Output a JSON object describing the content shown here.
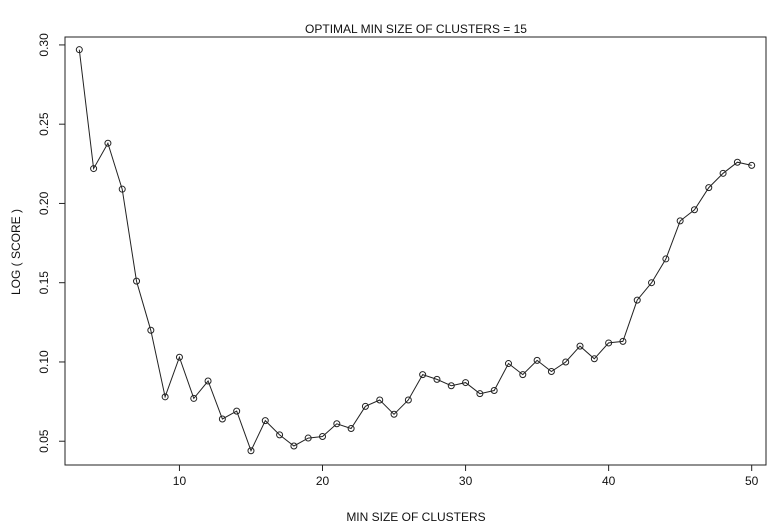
{
  "chart_data": {
    "type": "line",
    "title": "OPTIMAL MIN SIZE OF CLUSTERS = 15",
    "xlabel": "MIN SIZE OF CLUSTERS",
    "ylabel": "LOG ( SCORE )",
    "xlim": [
      2,
      51
    ],
    "ylim": [
      0.035,
      0.305
    ],
    "xticks": [
      10,
      20,
      30,
      40,
      50
    ],
    "yticks": [
      0.05,
      0.1,
      0.15,
      0.2,
      0.25,
      0.3
    ],
    "ytick_labels": [
      "0.05",
      "0.10",
      "0.15",
      "0.20",
      "0.25",
      "0.30"
    ],
    "grid": false,
    "markers": "open-circle",
    "series": [
      {
        "x": [
          3,
          4,
          5,
          6,
          7,
          8,
          9,
          10,
          11,
          12,
          13,
          14,
          15,
          16,
          17,
          18,
          19,
          20,
          21,
          22,
          23,
          24,
          25,
          26,
          27,
          28,
          29,
          30,
          31,
          32,
          33,
          34,
          35,
          36,
          37,
          38,
          39,
          40,
          41,
          42,
          43,
          44,
          45,
          46,
          47,
          48,
          49,
          50
        ],
        "values": [
          0.297,
          0.222,
          0.238,
          0.209,
          0.151,
          0.12,
          0.078,
          0.103,
          0.077,
          0.088,
          0.064,
          0.069,
          0.044,
          0.063,
          0.054,
          0.047,
          0.052,
          0.053,
          0.061,
          0.058,
          0.072,
          0.076,
          0.067,
          0.076,
          0.092,
          0.089,
          0.085,
          0.087,
          0.08,
          0.082,
          0.099,
          0.092,
          0.101,
          0.094,
          0.1,
          0.11,
          0.102,
          0.112,
          0.113,
          0.139,
          0.15,
          0.165,
          0.189,
          0.196,
          0.21,
          0.219,
          0.226,
          0.224
        ]
      }
    ]
  }
}
